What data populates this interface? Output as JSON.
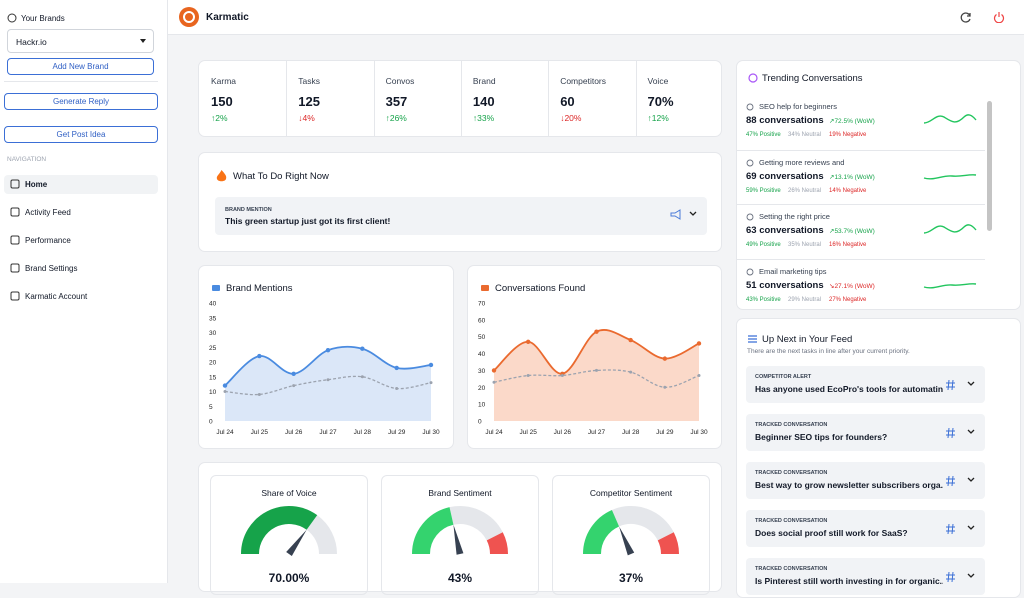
{
  "sidebar": {
    "brands_label": "Your Brands",
    "brand": "Hackr.io",
    "add_brand": "Add New Brand",
    "generate_reply": "Generate Reply",
    "post_idea": "Get Post Idea",
    "nav_heading": "NAVIGATION",
    "nav": [
      "Home",
      "Activity Feed",
      "Performance",
      "Brand Settings",
      "Karmatic Account"
    ]
  },
  "header": {
    "app_name": "Karmatic"
  },
  "stats": [
    {
      "label": "Karma",
      "value": "150",
      "change": "↑2%",
      "color": "#16a34a"
    },
    {
      "label": "Tasks",
      "value": "125",
      "change": "↓4%",
      "color": "#dc2626"
    },
    {
      "label": "Convos",
      "value": "357",
      "change": "↑26%",
      "color": "#16a34a"
    },
    {
      "label": "Brand",
      "value": "140",
      "change": "↑33%",
      "color": "#16a34a"
    },
    {
      "label": "Competitors",
      "value": "60",
      "change": "↓20%",
      "color": "#dc2626"
    },
    {
      "label": "Voice",
      "value": "70%",
      "change": "↑12%",
      "color": "#16a34a"
    }
  ],
  "action": {
    "title": "What To Do Right Now",
    "tag": "BRAND MENTION",
    "text": "This green startup just got its first client!"
  },
  "chart_data": [
    {
      "type": "line",
      "title": "Brand Mentions",
      "x": [
        "Jul 24",
        "Jul 25",
        "Jul 26",
        "Jul 27",
        "Jul 28",
        "Jul 29",
        "Jul 30"
      ],
      "ylim": [
        0,
        40
      ],
      "yticks": [
        0,
        5,
        10,
        15,
        20,
        25,
        30,
        35,
        40
      ],
      "series": [
        {
          "color": "#4a8be0",
          "area": "#dbe7f8",
          "values": [
            12,
            22,
            16,
            24,
            24.5,
            18,
            19
          ]
        },
        {
          "color": "#9ca3af",
          "dashed": true,
          "values": [
            10,
            9,
            12,
            14,
            15,
            11,
            13
          ]
        }
      ]
    },
    {
      "type": "line",
      "title": "Conversations Found",
      "x": [
        "Jul 24",
        "Jul 25",
        "Jul 26",
        "Jul 27",
        "Jul 28",
        "Jul 29",
        "Jul 30"
      ],
      "ylim": [
        0,
        70
      ],
      "yticks": [
        0,
        10,
        20,
        30,
        40,
        50,
        60,
        70
      ],
      "series": [
        {
          "color": "#ea6a2f",
          "area": "#fbd9c9",
          "values": [
            30,
            47,
            28,
            53,
            48,
            37,
            46
          ]
        },
        {
          "color": "#9ca3af",
          "dashed": true,
          "values": [
            23,
            27,
            27,
            30,
            29,
            20,
            27
          ]
        }
      ]
    }
  ],
  "gauges": [
    {
      "title": "Share of Voice",
      "value": 70,
      "label": "70.00%",
      "colors": {
        "fill": "#16a34a",
        "track": "#e5e7eb"
      }
    },
    {
      "title": "Brand Sentiment",
      "value": 43,
      "label": "43%",
      "colors": {
        "fill": "#34d36e",
        "track": "#e5e7eb",
        "alert": "#ef5350"
      }
    },
    {
      "title": "Competitor Sentiment",
      "value": 37,
      "label": "37%",
      "colors": {
        "fill": "#34d36e",
        "track": "#e5e7eb",
        "alert": "#ef5350"
      }
    }
  ],
  "trending": {
    "title": "Trending Conversations",
    "items": [
      {
        "topic": "SEO help for beginners",
        "count": "88 conversations",
        "change": "↗72.5% (WoW)",
        "color": "#16a34a",
        "positive": "47% Positive",
        "neutral": "34% Neutral",
        "negative": "19% Negative"
      },
      {
        "topic": "Getting more reviews and",
        "count": "69 conversations",
        "change": "↗13.1% (WoW)",
        "color": "#16a34a",
        "positive": "59% Positive",
        "neutral": "26% Neutral",
        "negative": "14% Negative"
      },
      {
        "topic": "Setting the right price",
        "count": "63 conversations",
        "change": "↗53.7% (WoW)",
        "color": "#16a34a",
        "positive": "49% Positive",
        "neutral": "35% Neutral",
        "negative": "16% Negative"
      },
      {
        "topic": "Email marketing tips",
        "count": "51 conversations",
        "change": "↘27.1% (WoW)",
        "color": "#dc2626",
        "positive": "43% Positive",
        "neutral": "29% Neutral",
        "negative": "27% Negative"
      }
    ]
  },
  "up_next": {
    "title": "Up Next in Your Feed",
    "subtitle": "There are the next tasks in line after your current priority.",
    "items": [
      {
        "tag": "COMPETITOR ALERT",
        "text": "Has anyone used EcoPro's tools for automatin..."
      },
      {
        "tag": "TRACKED CONVERSATION",
        "text": "Beginner SEO tips for founders?"
      },
      {
        "tag": "TRACKED CONVERSATION",
        "text": "Best way to grow newsletter subscribers orga..."
      },
      {
        "tag": "TRACKED CONVERSATION",
        "text": "Does social proof still work for SaaS?"
      },
      {
        "tag": "TRACKED CONVERSATION",
        "text": "Is Pinterest still worth investing in for organic..."
      }
    ]
  }
}
